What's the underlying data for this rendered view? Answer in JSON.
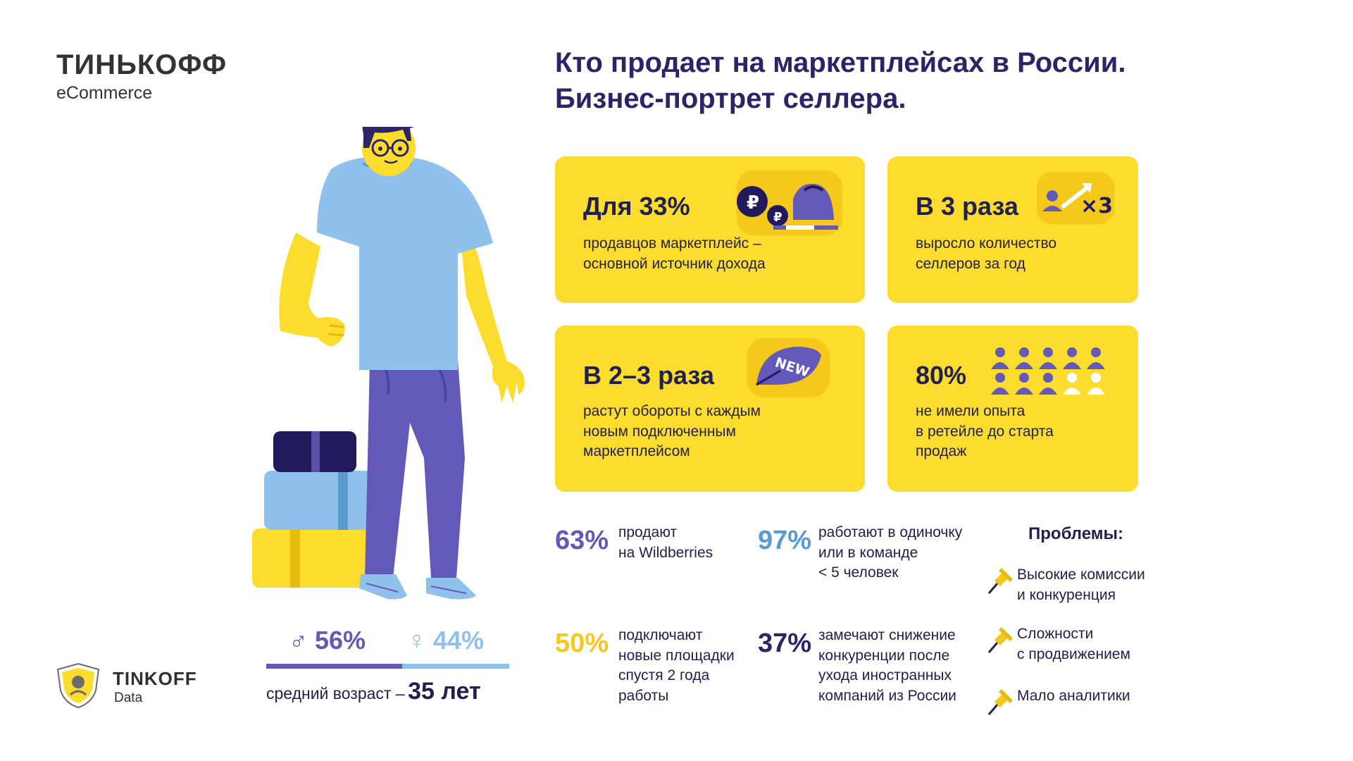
{
  "brand": {
    "name": "ТИНЬКОФФ",
    "sub": "eCommerce"
  },
  "headline": {
    "line1": "Кто продает на маркетплейсах в России.",
    "line2": "Бизнес-портрет селлера."
  },
  "cards": {
    "c1": {
      "title": "Для 33%",
      "lines": [
        "продавцов маркетплейс –",
        "основной источник дохода"
      ]
    },
    "c2": {
      "title": "В 3 раза",
      "lines": [
        "выросло количество",
        "селлеров за год"
      ],
      "badge_text": "×3"
    },
    "c3": {
      "title": "В 2–3 раза",
      "lines": [
        "растут обороты с каждым",
        "новым подключенным",
        "маркетплейсом"
      ],
      "badge_text": "NEW"
    },
    "c4": {
      "title": "80%",
      "lines": [
        "не имели опыта",
        "в ретейле до старта",
        "продаж"
      ],
      "people_filled": 8,
      "people_total": 10
    }
  },
  "stats": {
    "s1": {
      "value": "63%",
      "lines": [
        "продают",
        "на Wildberries"
      ],
      "color": "#6359b8"
    },
    "s2": {
      "value": "97%",
      "lines": [
        "работают в одиночку",
        "или в команде",
        "< 5 человек"
      ],
      "color": "#5a9bd2"
    },
    "s3": {
      "value": "50%",
      "lines": [
        "подключают",
        "новые площадки",
        "спустя 2 года",
        "работы"
      ],
      "color": "#f5c81c"
    },
    "s4": {
      "value": "37%",
      "lines": [
        "замечают снижение",
        "конкуренции после",
        "ухода иностранных",
        "компаний из России"
      ],
      "color": "#2b2467"
    }
  },
  "problems": {
    "title": "Проблемы:",
    "items": [
      {
        "lines": [
          "Высокие комиссии",
          "и конкуренция"
        ]
      },
      {
        "lines": [
          "Сложности",
          "с продвижением"
        ]
      },
      {
        "lines": [
          "Мало аналитики"
        ]
      }
    ]
  },
  "gender": {
    "male": "56%",
    "female": "44%",
    "male_share": 0.56,
    "female_share": 0.44,
    "male_symbol": "♂",
    "female_symbol": "♀"
  },
  "age": {
    "label": "средний возраст –",
    "value": "35 лет"
  },
  "footer": {
    "name": "TINKOFF",
    "sub": "Data"
  },
  "colors": {
    "yellow": "#fcdd2e",
    "navy": "#2b2467",
    "purple": "#6359b8",
    "light_blue": "#8fc1ec"
  },
  "icons": [
    "wallet-icon",
    "ruble-coin-icon",
    "growth-arrow-icon",
    "new-leaf-icon",
    "people-icon",
    "pin-icon",
    "tinkoff-shield-icon"
  ]
}
